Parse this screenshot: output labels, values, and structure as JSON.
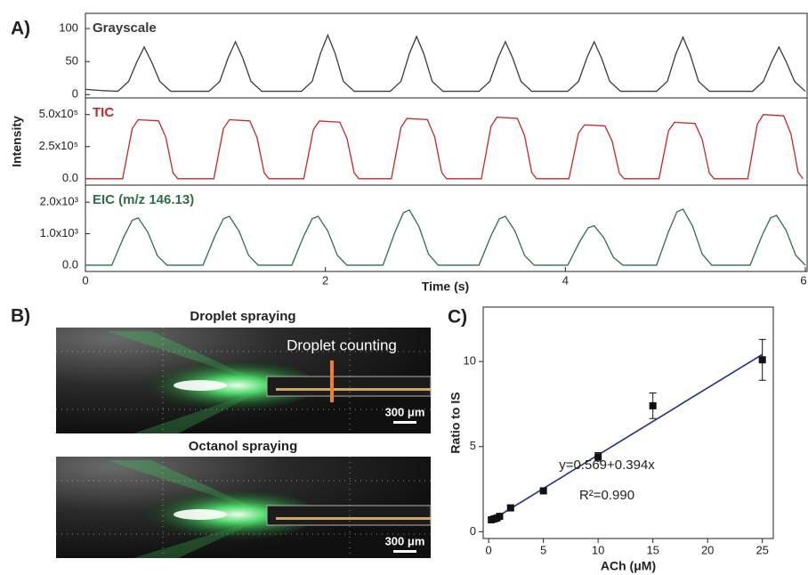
{
  "chart_data": [
    {
      "type": "line",
      "panel_label": "A)",
      "xlim": [
        0,
        6
      ],
      "ylim": [
        -5,
        123
      ],
      "yticks": [
        0,
        50,
        100
      ],
      "x": [
        0,
        0.15,
        0.27,
        0.36,
        0.43,
        0.49,
        0.55,
        0.62,
        0.71,
        1.03,
        1.12,
        1.19,
        1.25,
        1.31,
        1.38,
        1.47,
        1.8,
        1.89,
        1.96,
        2.02,
        2.08,
        2.15,
        2.24,
        2.54,
        2.63,
        2.7,
        2.76,
        2.82,
        2.89,
        2.98,
        3.28,
        3.37,
        3.44,
        3.5,
        3.56,
        3.63,
        3.72,
        4.02,
        4.11,
        4.18,
        4.24,
        4.3,
        4.37,
        4.46,
        4.76,
        4.85,
        4.92,
        4.98,
        5.04,
        5.11,
        5.2,
        5.56,
        5.65,
        5.72,
        5.78,
        5.84,
        5.91,
        6.0
      ],
      "series": [
        {
          "name": "Grayscale",
          "color": "#3a3a3a",
          "values": [
            8,
            6,
            5,
            20,
            50,
            72,
            50,
            20,
            5,
            5,
            20,
            56,
            80,
            56,
            20,
            5,
            5,
            20,
            63,
            90,
            63,
            20,
            5,
            5,
            20,
            62,
            88,
            62,
            20,
            5,
            5,
            20,
            56,
            80,
            56,
            20,
            5,
            5,
            20,
            56,
            80,
            56,
            20,
            5,
            5,
            20,
            61,
            87,
            61,
            20,
            5,
            5,
            20,
            50,
            72,
            50,
            20,
            5
          ]
        }
      ]
    },
    {
      "type": "line",
      "ylabel": "Intensity",
      "xlim": [
        0,
        6
      ],
      "ylim": [
        -50000,
        630000
      ],
      "yticks": [
        {
          "value": 0,
          "label": "0.0"
        },
        {
          "value": 250000,
          "label": "2.5x10⁵"
        },
        {
          "value": 500000,
          "label": "5.0x10⁵"
        }
      ],
      "x": [
        0,
        0.31,
        0.39,
        0.44,
        0.61,
        0.67,
        0.73,
        0.77,
        1.07,
        1.15,
        1.2,
        1.37,
        1.43,
        1.49,
        1.53,
        1.82,
        1.9,
        1.95,
        2.12,
        2.18,
        2.24,
        2.28,
        2.55,
        2.63,
        2.68,
        2.85,
        2.91,
        2.97,
        3.01,
        3.3,
        3.38,
        3.43,
        3.6,
        3.66,
        3.72,
        3.76,
        4.03,
        4.11,
        4.16,
        4.33,
        4.39,
        4.45,
        4.49,
        4.78,
        4.86,
        4.91,
        5.08,
        5.14,
        5.2,
        5.24,
        5.52,
        5.6,
        5.65,
        5.82,
        5.88,
        5.94,
        5.98
      ],
      "series": [
        {
          "name": "TIC",
          "color": "#c8262b",
          "values": [
            0,
            0,
            391000,
            460000,
            451000,
            322000,
            46000,
            0,
            0,
            391000,
            460000,
            451000,
            322000,
            46000,
            0,
            0,
            383000,
            450000,
            441000,
            315000,
            45000,
            0,
            0,
            400000,
            470000,
            461000,
            329000,
            47000,
            0,
            0,
            408000,
            480000,
            470000,
            336000,
            48000,
            0,
            0,
            357000,
            420000,
            412000,
            294000,
            42000,
            0,
            0,
            374000,
            440000,
            431000,
            308000,
            44000,
            0,
            0,
            425000,
            500000,
            490000,
            350000,
            50000,
            0
          ]
        }
      ]
    },
    {
      "type": "line",
      "xlabel": "Time (s)",
      "xlim": [
        0,
        6
      ],
      "xticks": [
        0,
        2,
        4,
        6
      ],
      "ylim": [
        -200,
        2540
      ],
      "yticks": [
        {
          "value": 0,
          "label": "0.0"
        },
        {
          "value": 1000,
          "label": "1.0x10³"
        },
        {
          "value": 2000,
          "label": "2.0x10³"
        }
      ],
      "x": [
        0,
        0.22,
        0.32,
        0.39,
        0.44,
        0.52,
        0.6,
        0.68,
        0.98,
        1.08,
        1.15,
        1.2,
        1.28,
        1.36,
        1.44,
        1.72,
        1.82,
        1.89,
        1.94,
        2.02,
        2.1,
        2.18,
        2.48,
        2.58,
        2.65,
        2.7,
        2.78,
        2.86,
        2.94,
        3.28,
        3.38,
        3.45,
        3.5,
        3.58,
        3.66,
        3.74,
        4.02,
        4.12,
        4.19,
        4.24,
        4.32,
        4.4,
        4.48,
        4.76,
        4.86,
        4.93,
        4.98,
        5.06,
        5.14,
        5.22,
        5.54,
        5.64,
        5.71,
        5.76,
        5.84,
        5.92,
        6.0
      ],
      "series": [
        {
          "name": "EIC (m/z 146.13)",
          "color": "#2f6e4a",
          "values": [
            0,
            0,
            900,
            1425,
            1500,
            1050,
            300,
            0,
            0,
            930,
            1473,
            1550,
            1085,
            310,
            0,
            0,
            930,
            1473,
            1550,
            1085,
            310,
            0,
            0,
            1050,
            1663,
            1750,
            1225,
            350,
            0,
            0,
            930,
            1473,
            1550,
            1085,
            310,
            0,
            0,
            750,
            1188,
            1250,
            875,
            250,
            0,
            0,
            1068,
            1691,
            1780,
            1246,
            356,
            0,
            0,
            948,
            1501,
            1580,
            1106,
            316,
            0
          ]
        }
      ]
    },
    {
      "type": "scatter",
      "panel_label": "C)",
      "xlabel": "ACh (μM)",
      "ylabel": "Ratio to IS",
      "xlim": [
        -0.5,
        26
      ],
      "xticks": [
        0,
        5,
        10,
        15,
        20,
        25
      ],
      "ylim": [
        -0.4,
        13.2
      ],
      "yticks": [
        0,
        5,
        10
      ],
      "x": [
        0.25,
        0.5,
        0.75,
        1,
        2,
        5,
        10,
        15,
        25
      ],
      "series": [
        {
          "color": "#111111",
          "values": [
            0.7,
            0.75,
            0.8,
            0.9,
            1.4,
            2.4,
            4.4,
            7.4,
            10.1
          ],
          "errors": [
            0.08,
            0.08,
            0.08,
            0.1,
            0.12,
            0.12,
            0.25,
            0.75,
            1.2
          ]
        }
      ],
      "fit_line": {
        "color": "#1f2f8f",
        "x": [
          0.25,
          25
        ],
        "y": [
          0.67,
          10.42
        ]
      },
      "annotations": [
        "y=0.569+0.394x",
        "R²=0.990"
      ]
    }
  ],
  "panel_b": {
    "panel_label": "B)",
    "images": [
      {
        "title": "Droplet spraying",
        "annotation": "Droplet counting",
        "scale_bar": "300 μm"
      },
      {
        "title": "Octanol spraying",
        "scale_bar": "300 μm"
      }
    ]
  }
}
